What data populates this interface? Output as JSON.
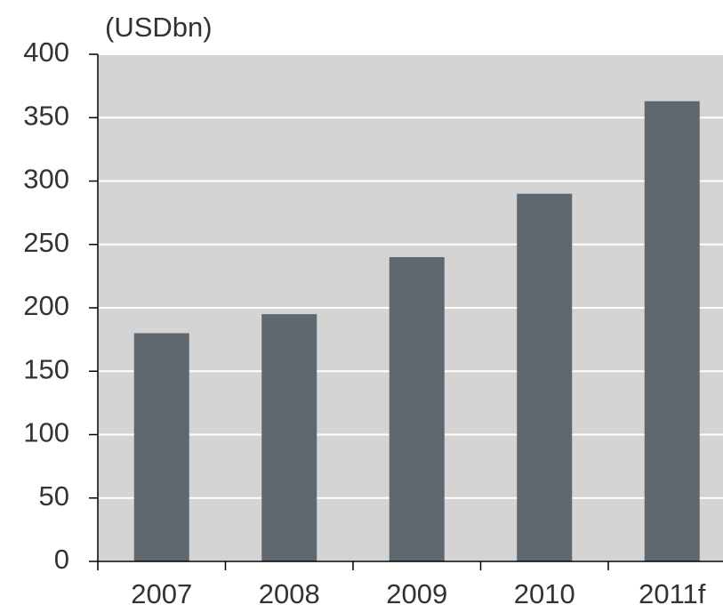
{
  "chart_data": {
    "type": "bar",
    "unit_label": "(USDbn)",
    "categories": [
      "2007",
      "2008",
      "2009",
      "2010",
      "2011f"
    ],
    "values": [
      180,
      195,
      240,
      290,
      363
    ],
    "color": "#5f686e",
    "ylim": [
      0,
      400
    ],
    "yticks": [
      0,
      50,
      100,
      150,
      200,
      250,
      300,
      350,
      400
    ],
    "grid": true
  }
}
